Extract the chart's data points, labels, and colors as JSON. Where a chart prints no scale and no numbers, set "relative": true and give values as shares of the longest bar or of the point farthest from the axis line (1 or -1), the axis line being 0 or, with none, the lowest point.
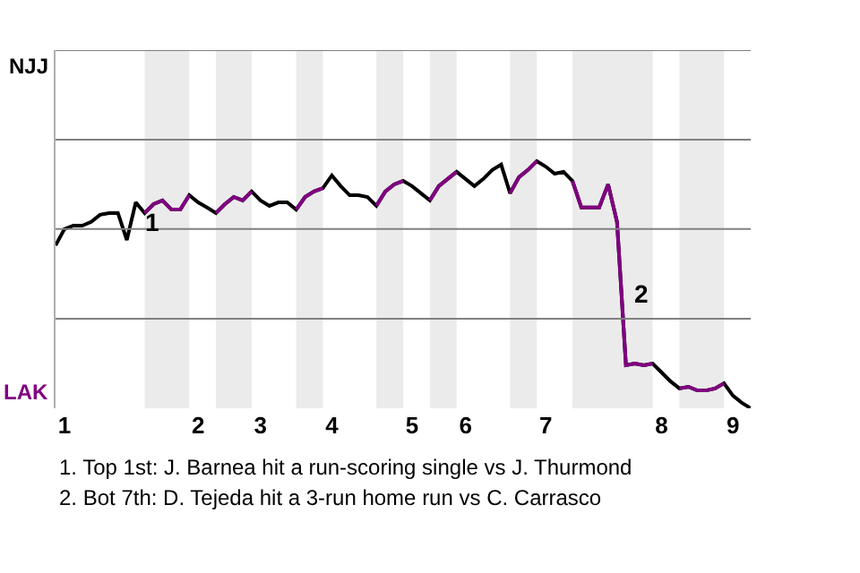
{
  "chart_data": {
    "type": "line",
    "relative": true,
    "categories": [
      null,
      "1",
      null,
      null,
      null,
      null,
      null,
      null,
      null,
      null,
      null,
      null,
      null,
      null,
      null,
      null,
      "2",
      null,
      null,
      null,
      null,
      null,
      null,
      "3",
      null,
      null,
      null,
      null,
      null,
      null,
      null,
      "4",
      null,
      null,
      null,
      null,
      null,
      null,
      null,
      null,
      "5",
      null,
      null,
      null,
      null,
      null,
      "6",
      null,
      null,
      null,
      null,
      null,
      null,
      null,
      null,
      "7",
      null,
      null,
      null,
      null,
      null,
      null,
      null,
      null,
      null,
      null,
      null,
      null,
      "8",
      null,
      null,
      null,
      null,
      null,
      null,
      null,
      "9",
      null,
      null
    ],
    "marker": "none",
    "line_style": "solid",
    "ref_lines": [
      {
        "axis": "y",
        "value": 0.362,
        "color": "#808080"
      },
      {
        "axis": "y",
        "value": 0.725,
        "color": "#808080"
      },
      {
        "axis": "y",
        "value": 1.087,
        "color": "#808080"
      },
      {
        "axis": "y",
        "value": 1.449,
        "color": "#808080"
      }
    ],
    "series": [
      {
        "color": "#000000",
        "values": [
          0.659,
          0.725,
          0.739,
          0.739,
          0.754,
          0.783,
          0.79,
          0.79,
          0.681,
          0.833,
          0.79,
          0.826,
          0.841,
          0.804,
          0.804,
          0.862,
          0.833,
          0.812,
          0.79,
          0.826,
          0.855,
          0.841,
          0.877,
          0.841,
          0.819,
          0.833,
          0.833,
          0.804,
          0.855,
          0.877,
          0.891,
          0.942,
          0.899,
          0.862,
          0.862,
          0.855,
          0.819,
          0.877,
          0.906,
          0.92,
          0.899,
          0.87,
          0.841,
          0.899,
          0.928,
          0.957,
          0.928,
          0.899,
          0.928,
          0.964,
          0.986,
          0.87,
          0.935,
          0.964,
          1,
          0.978,
          0.949,
          0.957,
          0.92,
          0.812,
          0.812,
          0.812,
          0.906,
          0.754,
          0.174,
          0.181,
          0.174,
          0.181,
          0.145,
          0.109,
          0.08,
          0.087,
          0.072,
          0.072,
          0.08,
          0.101,
          0.051,
          0.022,
          0
        ]
      },
      {
        "color": "#800080",
        "values": [
          null,
          null,
          null,
          null,
          null,
          null,
          null,
          null,
          null,
          null,
          0.79,
          0.826,
          0.841,
          0.804,
          0.804,
          0.862,
          null,
          null,
          0.79,
          0.826,
          0.855,
          0.841,
          0.877,
          null,
          null,
          null,
          null,
          0.804,
          0.855,
          0.877,
          0.891,
          null,
          null,
          null,
          null,
          null,
          0.819,
          0.877,
          0.906,
          0.92,
          null,
          null,
          0.841,
          0.899,
          0.928,
          0.957,
          null,
          null,
          null,
          null,
          null,
          0.87,
          0.935,
          0.964,
          1,
          null,
          null,
          null,
          0.92,
          0.812,
          0.812,
          0.812,
          0.906,
          0.754,
          0.174,
          0.181,
          0.174,
          0.181,
          null,
          null,
          0.08,
          0.087,
          0.072,
          0.072,
          0.08,
          0.101,
          null,
          null,
          null
        ]
      }
    ],
    "annotations": [
      "NJJ",
      "LAK",
      "1",
      "2",
      "1. Top 1st: J. Barnea hit a run-scoring single vs J. Thurmond",
      "2. Bot 7th: D. Tejeda hit a 3-run home run vs C. Carrasco"
    ]
  }
}
